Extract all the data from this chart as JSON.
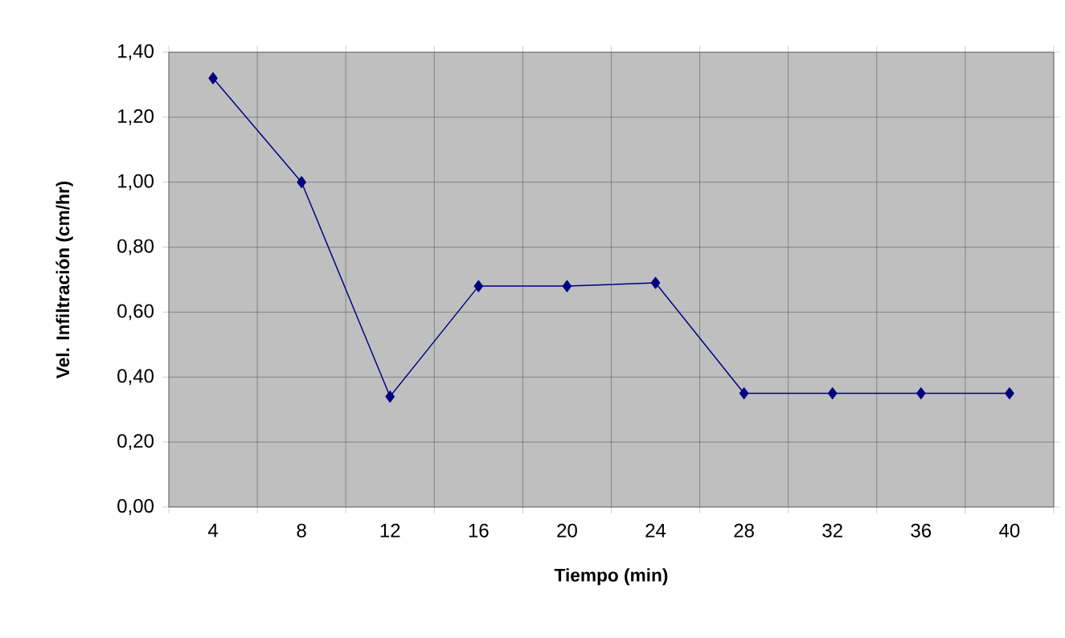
{
  "chart_data": {
    "type": "line",
    "xlabel": "Tiempo (min)",
    "ylabel": "Vel. Infiltración (cm/hr)",
    "categories": [
      "4",
      "8",
      "12",
      "16",
      "20",
      "24",
      "28",
      "32",
      "36",
      "40"
    ],
    "series": [
      {
        "color": "#000080",
        "values": [
          1.32,
          1.0,
          0.34,
          0.68,
          0.68,
          0.69,
          0.35,
          0.35,
          0.35,
          0.35
        ]
      }
    ],
    "ylim": [
      0,
      1.4
    ],
    "yticks": [
      {
        "value": 0,
        "label": "0,00"
      },
      {
        "value": 0.2,
        "label": "0,20"
      },
      {
        "value": 0.4,
        "label": "0,40"
      },
      {
        "value": 0.6,
        "label": "0,60"
      },
      {
        "value": 0.8,
        "label": "0,80"
      },
      {
        "value": 1.0,
        "label": "1,00"
      },
      {
        "value": 1.2,
        "label": "1,20"
      },
      {
        "value": 1.4,
        "label": "1,40"
      }
    ],
    "grid": true,
    "marker": "diamond",
    "line_style": "solid"
  }
}
